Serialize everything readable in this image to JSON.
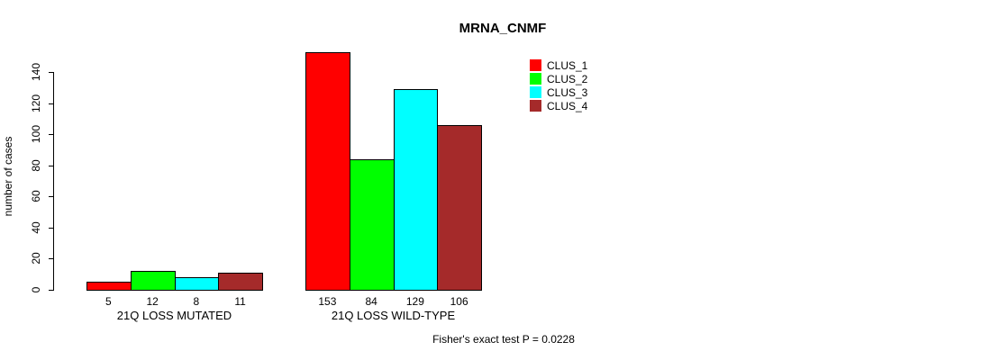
{
  "chart_data": {
    "type": "bar",
    "title": "MRNA_CNMF",
    "xlabel": "",
    "ylabel": "number of cases",
    "ylim": [
      0,
      140
    ],
    "yticks": [
      0,
      20,
      40,
      60,
      80,
      100,
      120,
      140
    ],
    "grid": false,
    "legend_position": "top-right-outside",
    "categories": [
      "21Q LOSS MUTATED",
      "21Q LOSS WILD-TYPE"
    ],
    "series": [
      {
        "name": "CLUS_1",
        "color": "#ff0000",
        "values": [
          5,
          153
        ]
      },
      {
        "name": "CLUS_2",
        "color": "#00ff00",
        "values": [
          12,
          84
        ]
      },
      {
        "name": "CLUS_3",
        "color": "#00ffff",
        "values": [
          8,
          129
        ]
      },
      {
        "name": "CLUS_4",
        "color": "#a52a2a",
        "values": [
          11,
          106
        ]
      }
    ],
    "bar_value_labels": [
      [
        5,
        12,
        8,
        11
      ],
      [
        153,
        84,
        129,
        106
      ]
    ],
    "annotation": "Fisher's exact test P = 0.0228"
  },
  "colors": {
    "axis": "#000000",
    "text": "#000000",
    "background": "#ffffff"
  }
}
